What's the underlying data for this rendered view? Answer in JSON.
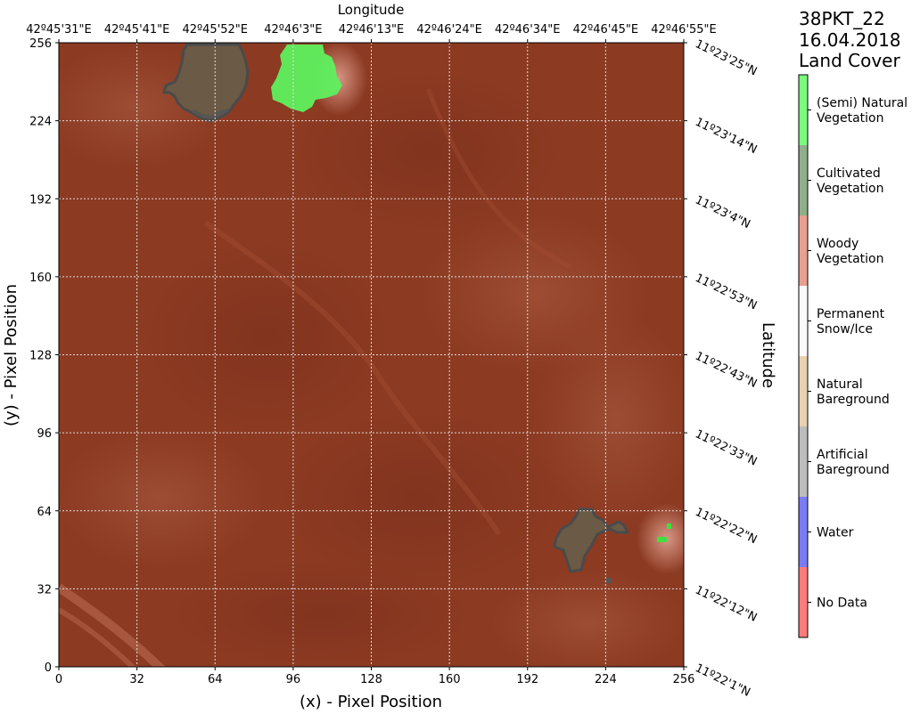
{
  "figure": {
    "title_lines": [
      "38PKT_22",
      "16.04.2018",
      "Land Cover"
    ]
  },
  "axes": {
    "x_bottom_label": "(x) - Pixel Position",
    "y_left_label": "(y) - Pixel Position",
    "x_top_label": "Longitude",
    "y_right_label": "Latitude",
    "x_ticks": [
      "0",
      "32",
      "64",
      "96",
      "128",
      "160",
      "192",
      "224",
      "256"
    ],
    "y_ticks": [
      "0",
      "32",
      "64",
      "96",
      "128",
      "160",
      "192",
      "224",
      "256"
    ],
    "longitude_ticks": [
      "42º45'31\"E",
      "42º45'41\"E",
      "42º45'52\"E",
      "42º46'3\"E",
      "42º46'13\"E",
      "42º46'24\"E",
      "42º46'34\"E",
      "42º46'45\"E",
      "42º46'55\"E"
    ],
    "latitude_ticks": [
      "11º22'1\"N",
      "11º22'12\"N",
      "11º22'22\"N",
      "11º22'33\"N",
      "11º22'43\"N",
      "11º22'53\"N",
      "11º23'4\"N",
      "11º23'14\"N",
      "11º23'25\"N"
    ],
    "xlim": [
      0,
      256
    ],
    "ylim": [
      0,
      256
    ],
    "grid": true
  },
  "legend": {
    "placement": "right",
    "items": [
      {
        "label": "(Semi) Natural Vegetation",
        "lines": [
          "(Semi) Natural",
          "Vegetation"
        ],
        "color": "#7cfc7c"
      },
      {
        "label": "Cultivated Vegetation",
        "lines": [
          "Cultivated",
          "Vegetation"
        ],
        "color": "#8faf8a"
      },
      {
        "label": "Woody Vegetation",
        "lines": [
          "Woody",
          "Vegetation"
        ],
        "color": "#e8a090"
      },
      {
        "label": "Permanent Snow/Ice",
        "lines": [
          "Permanent",
          "Snow/Ice"
        ],
        "color": "#fafafe"
      },
      {
        "label": "Natural Bareground",
        "lines": [
          "Natural",
          "Bareground"
        ],
        "color": "#e8d0b0"
      },
      {
        "label": "Artificial Bareground",
        "lines": [
          "Artificial",
          "Bareground"
        ],
        "color": "#bdbdbd"
      },
      {
        "label": "Water",
        "lines": [
          "Water"
        ],
        "color": "#7b7bf5"
      },
      {
        "label": "No Data",
        "lines": [
          "No Data"
        ],
        "color": "#ff7b7b"
      }
    ]
  },
  "colors": {
    "terrain": "#8c3a22",
    "terrain_light": "#a9573d",
    "terrain_dark": "#7a2f1b",
    "artificial_overlay": "#6b5a45",
    "natural_vegetation_overlay": "#5ef05e",
    "grid": "#dddddd"
  },
  "chart_data": {
    "type": "heatmap",
    "title": "38PKT_22 16.04.2018 Land Cover",
    "xlabel": "(x) - Pixel Position",
    "ylabel": "(y) - Pixel Position",
    "xlim": [
      0,
      256
    ],
    "ylim": [
      0,
      256
    ],
    "classes_present": [
      {
        "class": "Artificial Bareground",
        "region": "top-left",
        "approx_x_range": [
          43,
          79
        ],
        "approx_y_range": [
          224,
          256
        ]
      },
      {
        "class": "(Semi) Natural Vegetation",
        "region": "top-center",
        "approx_x_range": [
          87,
          116
        ],
        "approx_y_range": [
          227,
          256
        ]
      },
      {
        "class": "Artificial Bareground",
        "region": "bottom-right",
        "approx_x_range": [
          204,
          233
        ],
        "approx_y_range": [
          39,
          65
        ]
      },
      {
        "class": "(Semi) Natural Vegetation",
        "region": "bottom-right",
        "approx_x_range": [
          246,
          251
        ],
        "approx_y_range": [
          51,
          58
        ]
      }
    ]
  }
}
